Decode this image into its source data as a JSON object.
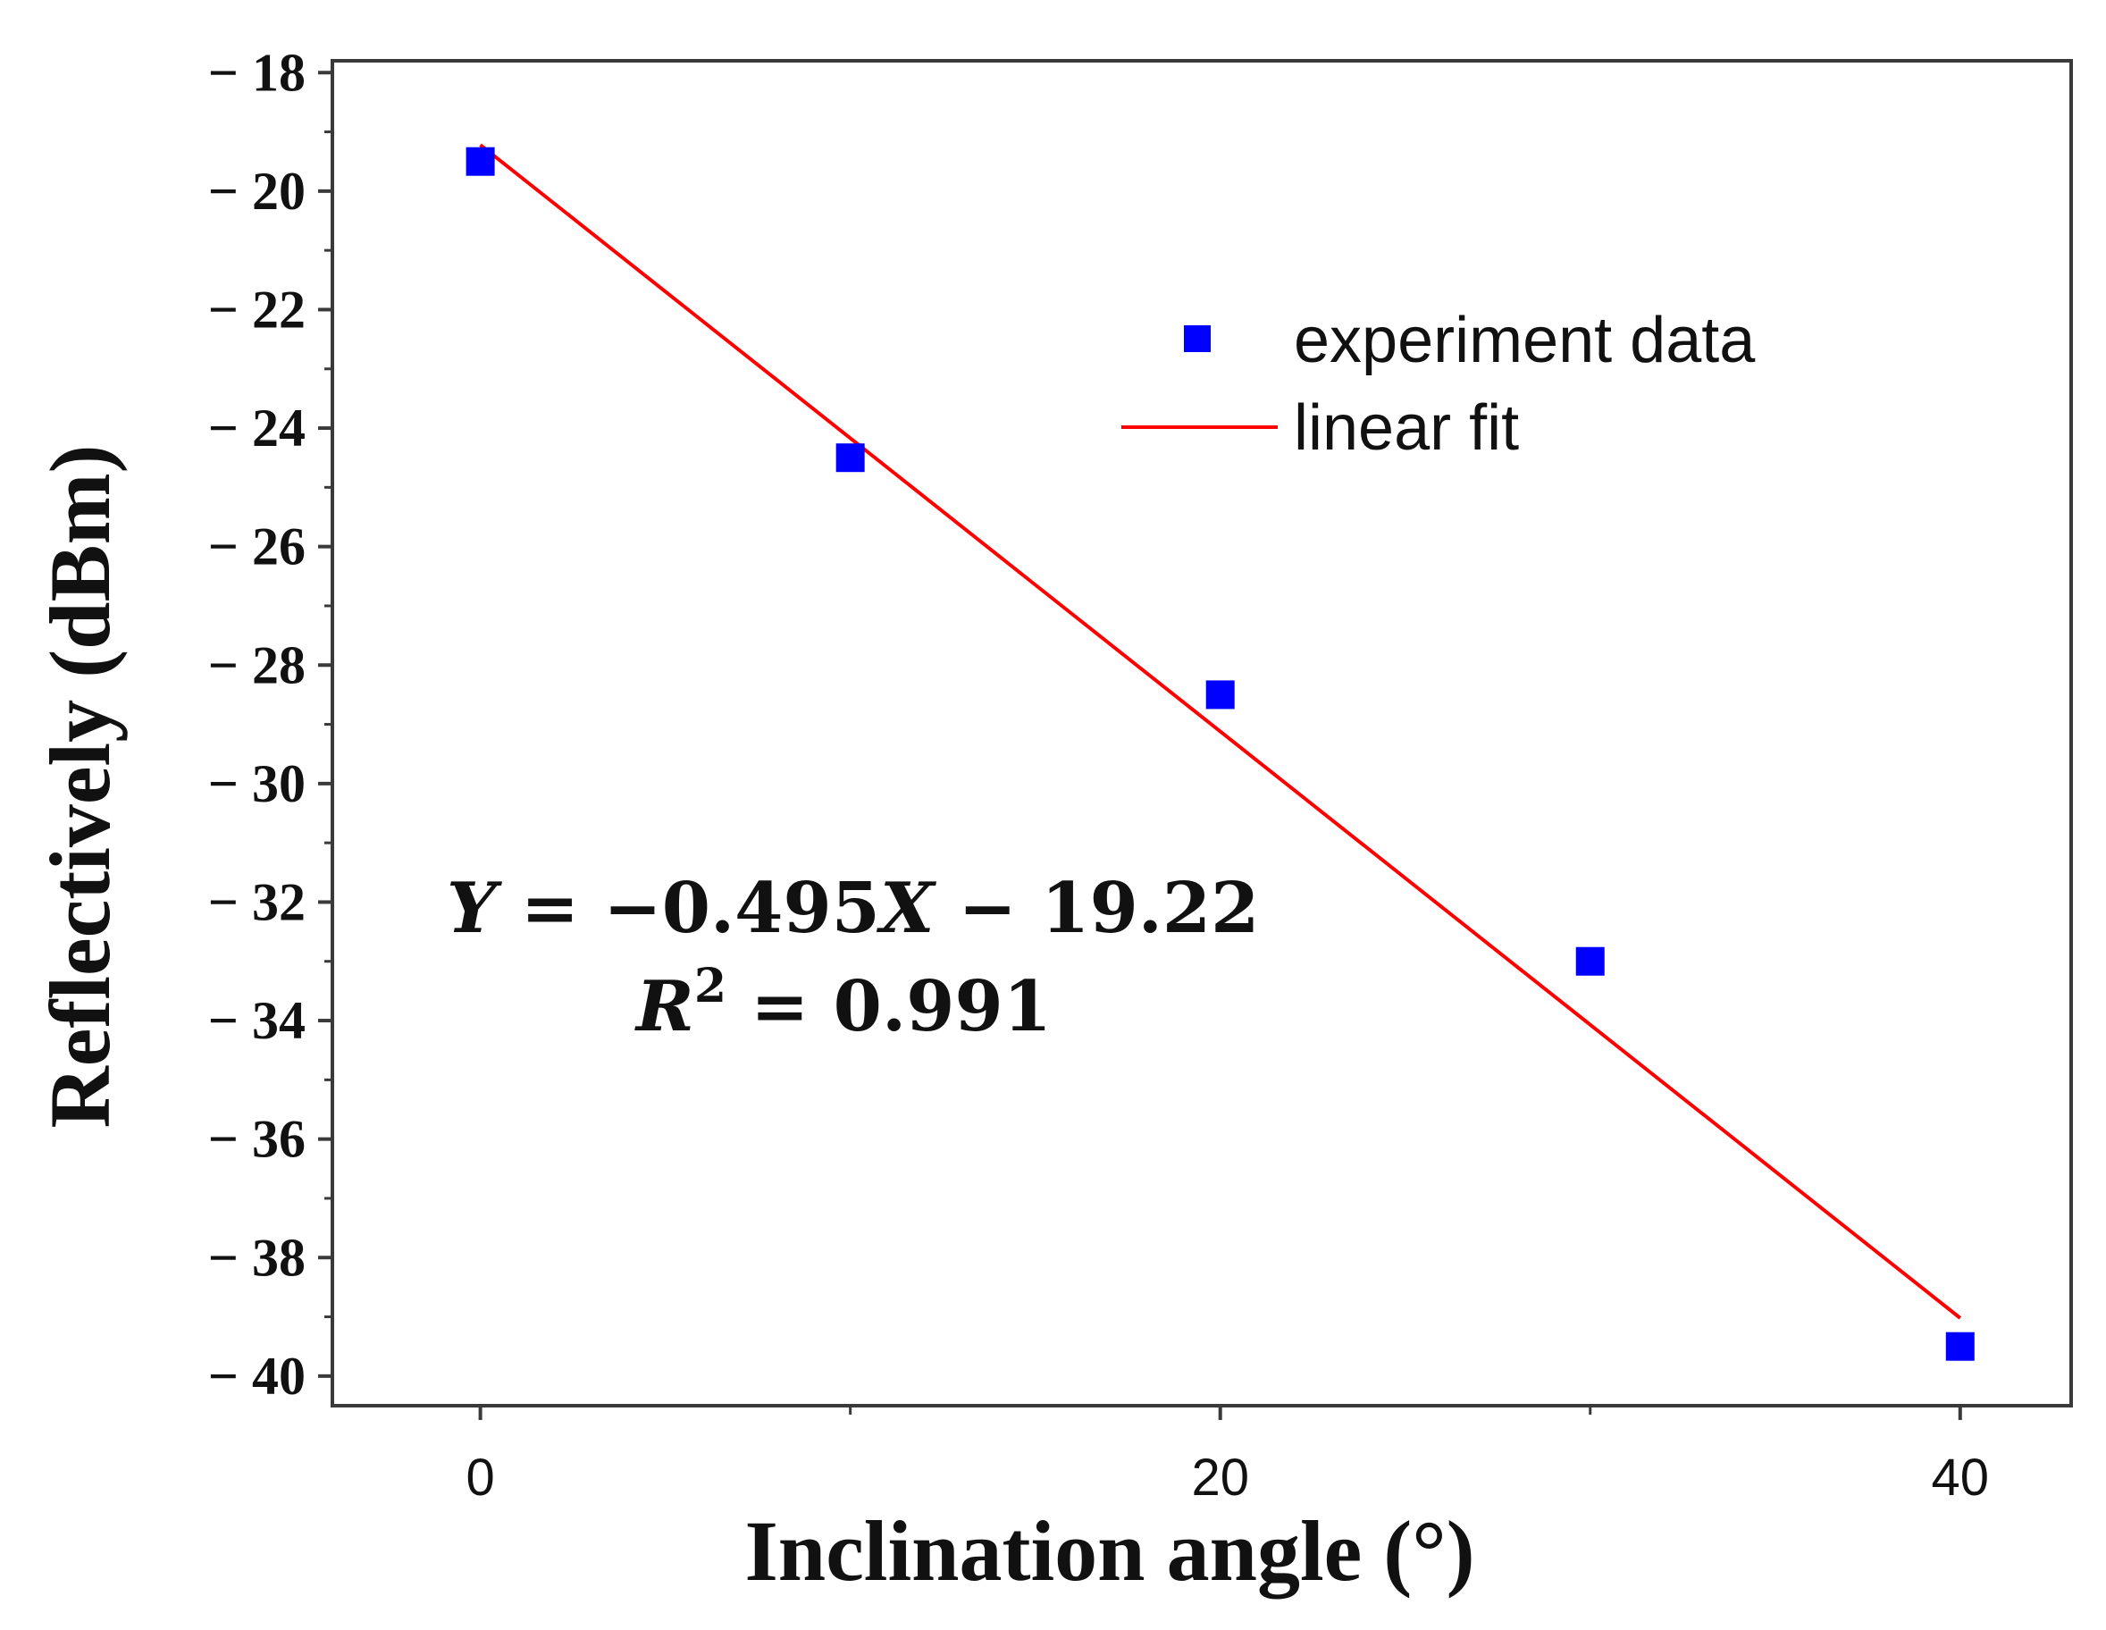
{
  "chart_data": {
    "type": "scatter",
    "title": "",
    "xlabel": "Inclination angle (°)",
    "ylabel": "Reflectively (dBm)",
    "xlim": [
      -4,
      43
    ],
    "ylim": [
      -40.5,
      -17.8
    ],
    "xticks": [
      0,
      20,
      40
    ],
    "xtick_labels": [
      "0",
      "20",
      "40"
    ],
    "xminor": [
      10,
      30
    ],
    "yticks": [
      -18,
      -20,
      -22,
      -24,
      -26,
      -28,
      -30,
      -32,
      -34,
      -36,
      -38,
      -40
    ],
    "ytick_labels": [
      "− 18",
      "− 20",
      "− 22",
      "− 24",
      "− 26",
      "− 28",
      "− 30",
      "− 32",
      "− 34",
      "− 36",
      "− 38",
      "− 40"
    ],
    "grid": false,
    "legend_position": "top-right",
    "series": [
      {
        "name": "experiment data",
        "kind": "scatter",
        "color": "#0000ff",
        "marker": "square",
        "x": [
          0,
          10,
          20,
          30,
          40
        ],
        "y": [
          -19.5,
          -24.5,
          -28.5,
          -33.0,
          -39.5
        ]
      },
      {
        "name": "linear fit",
        "kind": "line",
        "color": "#ff0000",
        "slope": -0.495,
        "intercept": -19.22,
        "x": [
          0,
          40
        ],
        "y": [
          -19.22,
          -39.02
        ]
      }
    ],
    "annotation": {
      "equation": {
        "Y": "Y",
        "eq1": " = −0.495",
        "X": "X",
        "eq2": " − 19.22"
      },
      "r_squared": {
        "R": "R",
        "sup": "2",
        "eq": " = 0.991"
      }
    }
  }
}
